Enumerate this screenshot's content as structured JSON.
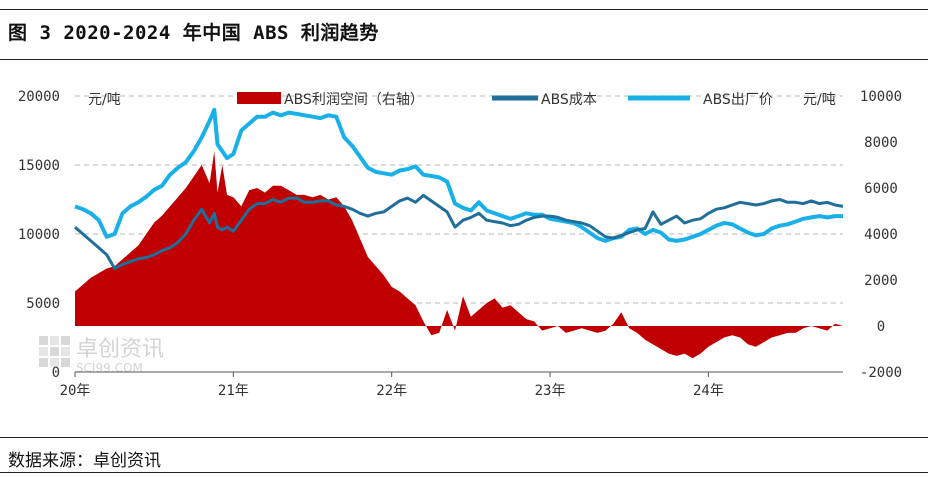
{
  "figure_title": "图 3 2020-2024 年中国 ABS 利润趋势",
  "source": "数据来源：卓创资讯",
  "watermark": {
    "name": "卓创资讯",
    "site": "SCI99.COM"
  },
  "chart_data": {
    "type": "line",
    "left_axis": {
      "unit_label": "元/吨",
      "ylim": [
        0,
        20000
      ],
      "ticks": [
        "0",
        "5000",
        "10000",
        "15000",
        "20000"
      ]
    },
    "right_axis": {
      "unit_label": "元/吨",
      "ylim": [
        -2000,
        10000
      ],
      "ticks": [
        "-2000",
        "0",
        "2000",
        "4000",
        "6000",
        "8000",
        "10000"
      ]
    },
    "x_ticks": [
      "20年",
      "21年",
      "22年",
      "23年",
      "24年"
    ],
    "x_tick_values": [
      2020,
      2021,
      2022,
      2023,
      2024
    ],
    "xlim": [
      2020,
      2024.85
    ],
    "grid": "horizontal dashed",
    "legend_position": "top",
    "series": [
      {
        "name": "ABS利润空间（右轴）",
        "type": "area",
        "axis": "right",
        "color": "#c00000",
        "x": [
          2020.0,
          2020.05,
          2020.1,
          2020.15,
          2020.2,
          2020.25,
          2020.3,
          2020.35,
          2020.4,
          2020.45,
          2020.5,
          2020.55,
          2020.6,
          2020.65,
          2020.7,
          2020.75,
          2020.8,
          2020.85,
          2020.88,
          2020.9,
          2020.93,
          2020.96,
          2021.0,
          2021.05,
          2021.1,
          2021.15,
          2021.2,
          2021.25,
          2021.3,
          2021.35,
          2021.4,
          2021.45,
          2021.5,
          2021.55,
          2021.6,
          2021.65,
          2021.7,
          2021.75,
          2021.8,
          2021.85,
          2021.9,
          2021.95,
          2022.0,
          2022.05,
          2022.1,
          2022.15,
          2022.2,
          2022.25,
          2022.3,
          2022.35,
          2022.4,
          2022.45,
          2022.5,
          2022.55,
          2022.6,
          2022.65,
          2022.7,
          2022.75,
          2022.8,
          2022.85,
          2022.9,
          2022.95,
          2023.0,
          2023.05,
          2023.1,
          2023.15,
          2023.2,
          2023.25,
          2023.3,
          2023.35,
          2023.4,
          2023.45,
          2023.5,
          2023.55,
          2023.6,
          2023.65,
          2023.7,
          2023.75,
          2023.8,
          2023.85,
          2023.9,
          2023.95,
          2024.0,
          2024.05,
          2024.1,
          2024.15,
          2024.2,
          2024.25,
          2024.3,
          2024.35,
          2024.4,
          2024.45,
          2024.5,
          2024.55,
          2024.6,
          2024.65,
          2024.7,
          2024.75,
          2024.8,
          2024.85
        ],
        "values": [
          1500,
          1800,
          2100,
          2300,
          2500,
          2600,
          2900,
          3200,
          3500,
          4000,
          4500,
          4800,
          5200,
          5600,
          6000,
          6500,
          7000,
          6200,
          7600,
          5800,
          7000,
          5700,
          5600,
          5200,
          5900,
          6000,
          5800,
          6100,
          6100,
          5900,
          5700,
          5700,
          5600,
          5700,
          5500,
          5600,
          5200,
          4600,
          3800,
          3000,
          2600,
          2200,
          1700,
          1500,
          1200,
          900,
          200,
          -400,
          -300,
          700,
          -200,
          1300,
          400,
          700,
          1000,
          1200,
          800,
          900,
          600,
          300,
          200,
          -200,
          -100,
          0,
          -300,
          -200,
          -100,
          -200,
          -300,
          -200,
          100,
          600,
          -100,
          -300,
          -600,
          -800,
          -1000,
          -1200,
          -1300,
          -1200,
          -1400,
          -1200,
          -900,
          -700,
          -500,
          -400,
          -500,
          -800,
          -900,
          -700,
          -500,
          -400,
          -300,
          -300,
          -100,
          0,
          -100,
          -200,
          100,
          0
        ]
      },
      {
        "name": "ABS成本",
        "type": "line",
        "axis": "left",
        "color": "#1f6f9a",
        "x": [
          2020.0,
          2020.05,
          2020.1,
          2020.15,
          2020.2,
          2020.25,
          2020.3,
          2020.35,
          2020.4,
          2020.45,
          2020.5,
          2020.55,
          2020.6,
          2020.65,
          2020.7,
          2020.75,
          2020.8,
          2020.85,
          2020.88,
          2020.9,
          2020.93,
          2020.96,
          2021.0,
          2021.05,
          2021.1,
          2021.15,
          2021.2,
          2021.25,
          2021.3,
          2021.35,
          2021.4,
          2021.45,
          2021.5,
          2021.55,
          2021.6,
          2021.65,
          2021.7,
          2021.75,
          2021.8,
          2021.85,
          2021.9,
          2021.95,
          2022.0,
          2022.05,
          2022.1,
          2022.15,
          2022.2,
          2022.25,
          2022.3,
          2022.35,
          2022.4,
          2022.45,
          2022.5,
          2022.55,
          2022.6,
          2022.65,
          2022.7,
          2022.75,
          2022.8,
          2022.85,
          2022.9,
          2022.95,
          2023.0,
          2023.05,
          2023.1,
          2023.15,
          2023.2,
          2023.25,
          2023.3,
          2023.35,
          2023.4,
          2023.45,
          2023.5,
          2023.55,
          2023.6,
          2023.65,
          2023.7,
          2023.75,
          2023.8,
          2023.85,
          2023.9,
          2023.95,
          2024.0,
          2024.05,
          2024.1,
          2024.15,
          2024.2,
          2024.25,
          2024.3,
          2024.35,
          2024.4,
          2024.45,
          2024.5,
          2024.55,
          2024.6,
          2024.65,
          2024.7,
          2024.75,
          2024.8,
          2024.85
        ],
        "values": [
          10500,
          10000,
          9500,
          9000,
          8500,
          7500,
          7800,
          8000,
          8200,
          8300,
          8500,
          8800,
          9000,
          9400,
          10000,
          11000,
          11800,
          10800,
          11500,
          10500,
          10300,
          10500,
          10200,
          11000,
          11800,
          12200,
          12200,
          12500,
          12300,
          12600,
          12600,
          12300,
          12300,
          12400,
          12400,
          12100,
          12000,
          11800,
          11500,
          11300,
          11500,
          11600,
          12000,
          12400,
          12600,
          12300,
          12800,
          12400,
          12000,
          11600,
          10500,
          11000,
          11200,
          11500,
          11000,
          10900,
          10800,
          10600,
          10700,
          11000,
          11200,
          11300,
          11300,
          11200,
          11000,
          10900,
          10800,
          10600,
          10200,
          9800,
          9700,
          9900,
          10100,
          10300,
          10400,
          11600,
          10700,
          11000,
          11300,
          10800,
          11000,
          11100,
          11500,
          11800,
          11900,
          12100,
          12300,
          12200,
          12100,
          12200,
          12400,
          12500,
          12300,
          12300,
          12200,
          12400,
          12200,
          12300,
          12100,
          12000
        ]
      },
      {
        "name": "ABS出厂价",
        "type": "line",
        "axis": "left",
        "color": "#19b0e8",
        "x": [
          2020.0,
          2020.05,
          2020.1,
          2020.15,
          2020.2,
          2020.25,
          2020.3,
          2020.35,
          2020.4,
          2020.45,
          2020.5,
          2020.55,
          2020.6,
          2020.65,
          2020.7,
          2020.75,
          2020.8,
          2020.85,
          2020.88,
          2020.9,
          2020.93,
          2020.96,
          2021.0,
          2021.05,
          2021.1,
          2021.15,
          2021.2,
          2021.25,
          2021.3,
          2021.35,
          2021.4,
          2021.45,
          2021.5,
          2021.55,
          2021.6,
          2021.65,
          2021.7,
          2021.75,
          2021.8,
          2021.85,
          2021.9,
          2021.95,
          2022.0,
          2022.05,
          2022.1,
          2022.15,
          2022.2,
          2022.25,
          2022.3,
          2022.35,
          2022.4,
          2022.45,
          2022.5,
          2022.55,
          2022.6,
          2022.65,
          2022.7,
          2022.75,
          2022.8,
          2022.85,
          2022.9,
          2022.95,
          2023.0,
          2023.05,
          2023.1,
          2023.15,
          2023.2,
          2023.25,
          2023.3,
          2023.35,
          2023.4,
          2023.45,
          2023.5,
          2023.55,
          2023.6,
          2023.65,
          2023.7,
          2023.75,
          2023.8,
          2023.85,
          2023.9,
          2023.95,
          2024.0,
          2024.05,
          2024.1,
          2024.15,
          2024.2,
          2024.25,
          2024.3,
          2024.35,
          2024.4,
          2024.45,
          2024.5,
          2024.55,
          2024.6,
          2024.65,
          2024.7,
          2024.75,
          2024.8,
          2024.85
        ],
        "values": [
          12000,
          11800,
          11500,
          11000,
          9800,
          10000,
          11500,
          12000,
          12300,
          12700,
          13200,
          13500,
          14300,
          14800,
          15200,
          16000,
          17000,
          18200,
          19000,
          16500,
          16000,
          15500,
          15800,
          17500,
          18000,
          18500,
          18500,
          18800,
          18600,
          18800,
          18700,
          18600,
          18500,
          18400,
          18600,
          18500,
          17000,
          16400,
          15600,
          14800,
          14500,
          14400,
          14300,
          14600,
          14700,
          14900,
          14300,
          14200,
          14100,
          13800,
          12200,
          11900,
          11700,
          12300,
          11700,
          11500,
          11300,
          11100,
          11300,
          11500,
          11400,
          11400,
          11100,
          11000,
          10900,
          10800,
          10500,
          10100,
          9700,
          9500,
          9700,
          9800,
          10300,
          10400,
          10000,
          10300,
          10100,
          9600,
          9500,
          9600,
          9800,
          10000,
          10300,
          10600,
          10800,
          10700,
          10400,
          10100,
          9900,
          10000,
          10400,
          10600,
          10700,
          10900,
          11100,
          11200,
          11300,
          11200,
          11300,
          11300
        ]
      }
    ]
  }
}
